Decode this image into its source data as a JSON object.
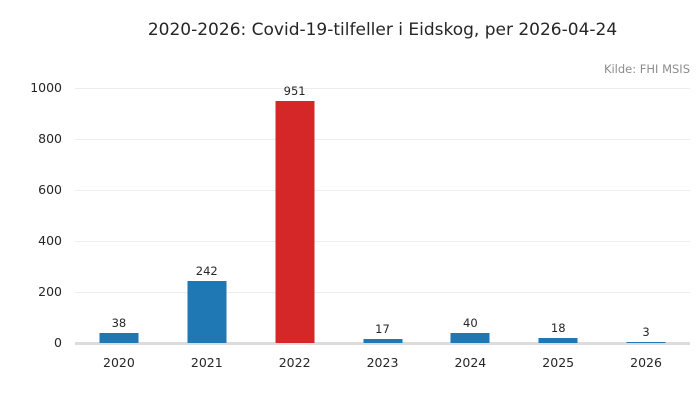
{
  "title": "2020-2026: Covid-19-tilfeller i Eidskog, per 2026-04-24",
  "source_note": "Kilde: FHI MSIS",
  "colors": {
    "bar_default": "#1f77b4",
    "bar_highlight": "#d62728",
    "gridline": "#ededed",
    "baseline": "#dcdcdc",
    "text": "#262626",
    "muted_text": "#8c8c8c"
  },
  "chart_data": {
    "type": "bar",
    "title": "2020-2026: Covid-19-tilfeller i Eidskog, per 2026-04-24",
    "source_note": "Kilde: FHI MSIS",
    "categories": [
      "2020",
      "2021",
      "2022",
      "2023",
      "2024",
      "2025",
      "2026"
    ],
    "values": [
      38,
      242,
      951,
      17,
      40,
      18,
      3
    ],
    "bar_colors": [
      "#1f77b4",
      "#1f77b4",
      "#d62728",
      "#1f77b4",
      "#1f77b4",
      "#1f77b4",
      "#1f77b4"
    ],
    "value_labels": [
      "38",
      "242",
      "951",
      "17",
      "40",
      "18",
      "3"
    ],
    "xlabel": "",
    "ylabel": "",
    "ylim": [
      0,
      1000
    ],
    "yticks": [
      0,
      200,
      400,
      600,
      800,
      1000
    ],
    "grid": true,
    "legend": false,
    "annotations": "value shown above each bar"
  }
}
